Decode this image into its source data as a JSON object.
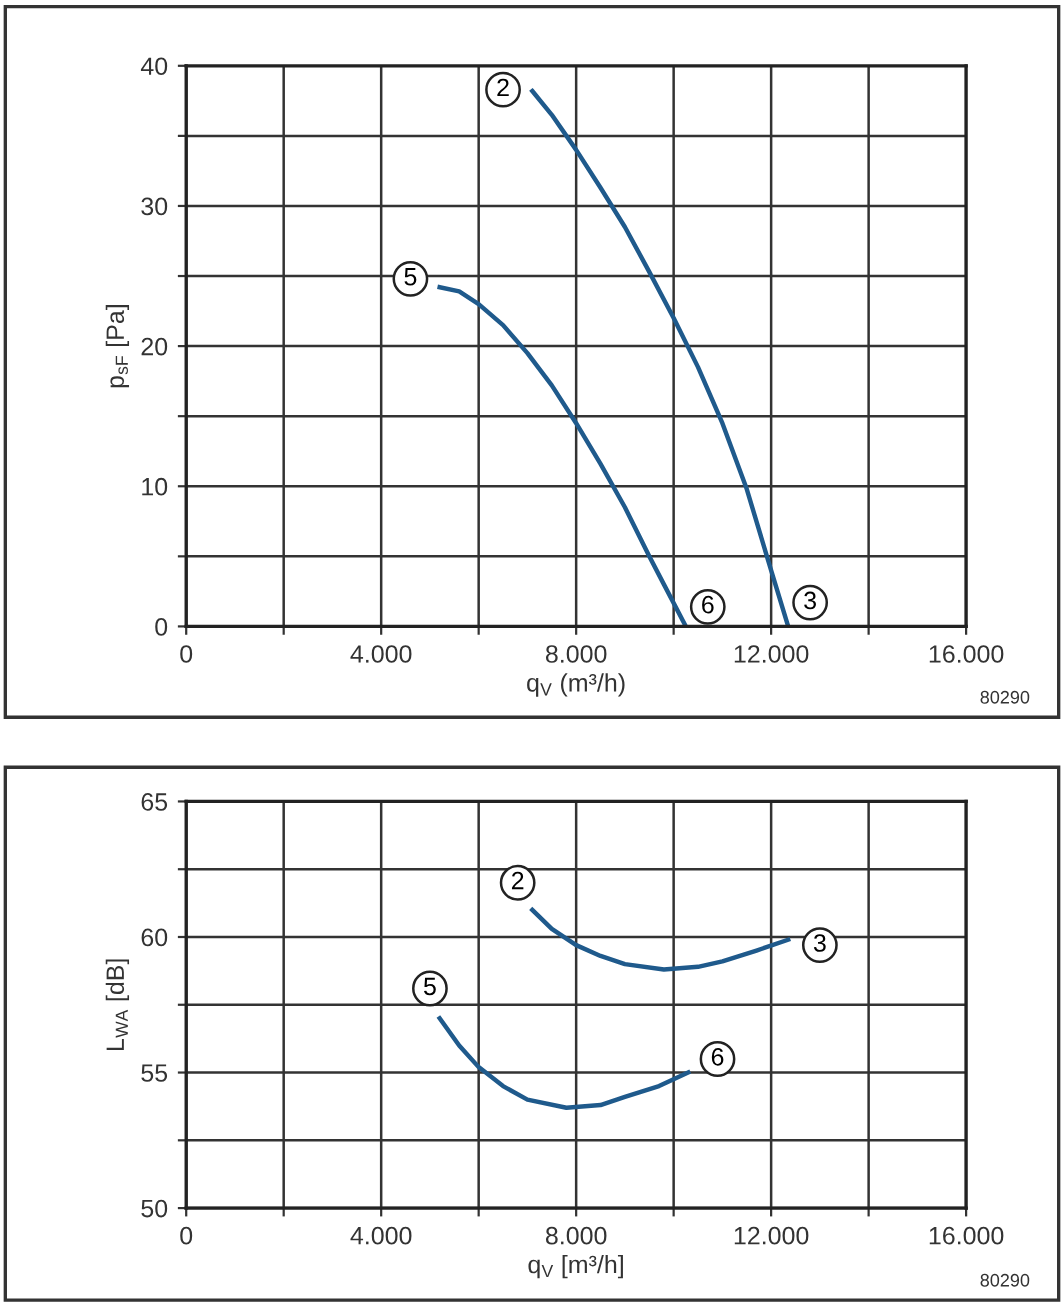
{
  "chart_data": [
    {
      "type": "line",
      "xlabel": "q$_{V}$ (m³/h)",
      "ylabel": "p$_{sF}$ [Pa]",
      "xlim": [
        0,
        16000
      ],
      "xticks": [
        {
          "value": 0,
          "label": "0"
        },
        {
          "value": 2000,
          "label": null
        },
        {
          "value": 4000,
          "label": "4.000"
        },
        {
          "value": 6000,
          "label": null
        },
        {
          "value": 8000,
          "label": "8.000"
        },
        {
          "value": 10000,
          "label": null
        },
        {
          "value": 12000,
          "label": "12.000"
        },
        {
          "value": 14000,
          "label": null
        },
        {
          "value": 16000,
          "label": "16.000"
        }
      ],
      "ylim": [
        0,
        40
      ],
      "yticks": [
        0,
        {
          "value": 5,
          "label": null
        },
        10,
        {
          "value": 15,
          "label": null
        },
        20,
        {
          "value": 25,
          "label": null
        },
        30,
        {
          "value": 35,
          "label": null
        },
        40
      ],
      "grid": true,
      "line_style": "solid",
      "marker": "none",
      "series": [
        {
          "color": "#1f5a8c",
          "x": [
            7100,
            7500,
            8000,
            8500,
            9000,
            9500,
            10000,
            10500,
            11000,
            11500,
            12000,
            12350
          ],
          "values": [
            38.2,
            36.5,
            34,
            31.3,
            28.5,
            25.3,
            22,
            18.5,
            14.5,
            9.8,
            4,
            0
          ]
        },
        {
          "color": "#1f5a8c",
          "x": [
            5200,
            5600,
            6000,
            6500,
            7000,
            7500,
            8000,
            8500,
            9000,
            9500,
            9800,
            10250
          ],
          "values": [
            24.2,
            23.9,
            23,
            21.5,
            19.5,
            17.2,
            14.5,
            11.6,
            8.5,
            5,
            3,
            0
          ]
        }
      ],
      "annotations": [
        {
          "text": "2",
          "x": 6500,
          "y": 38.3
        },
        {
          "text": "3",
          "x": 12800,
          "y": 1.7
        },
        {
          "text": "5",
          "x": 4600,
          "y": 24.8
        },
        {
          "text": "6",
          "x": 10700,
          "y": 1.4
        },
        "80290"
      ]
    },
    {
      "type": "line",
      "xlabel": "q$_{V}$ [m³/h]",
      "ylabel": "L$_{WA}$ [dB]",
      "xlim": [
        0,
        16000
      ],
      "xticks": [
        {
          "value": 0,
          "label": "0"
        },
        {
          "value": 2000,
          "label": null
        },
        {
          "value": 4000,
          "label": "4.000"
        },
        {
          "value": 6000,
          "label": null
        },
        {
          "value": 8000,
          "label": "8.000"
        },
        {
          "value": 10000,
          "label": null
        },
        {
          "value": 12000,
          "label": "12.000"
        },
        {
          "value": 14000,
          "label": null
        },
        {
          "value": 16000,
          "label": "16.000"
        }
      ],
      "ylim": [
        50,
        65
      ],
      "yticks": [
        50,
        {
          "value": 52.5,
          "label": null
        },
        55,
        {
          "value": 57.5,
          "label": null
        },
        60,
        {
          "value": 62.5,
          "label": null
        },
        65
      ],
      "grid": true,
      "line_style": "solid",
      "marker": "none",
      "series": [
        {
          "color": "#1f5a8c",
          "x": [
            7100,
            7500,
            8000,
            8500,
            9000,
            9800,
            10500,
            11000,
            11700,
            12350
          ],
          "values": [
            61,
            60.3,
            59.7,
            59.3,
            59,
            58.8,
            58.9,
            59.1,
            59.5,
            59.9
          ]
        },
        {
          "color": "#1f5a8c",
          "x": [
            5200,
            5600,
            6000,
            6500,
            7000,
            7800,
            8500,
            9000,
            9700,
            10300
          ],
          "values": [
            57,
            56,
            55.2,
            54.5,
            54,
            53.7,
            53.8,
            54.1,
            54.5,
            55
          ]
        }
      ],
      "annotations": [
        {
          "text": "2",
          "x": 6800,
          "y": 62
        },
        {
          "text": "3",
          "x": 13000,
          "y": 59.7
        },
        {
          "text": "5",
          "x": 5000,
          "y": 58.1
        },
        {
          "text": "6",
          "x": 10900,
          "y": 55.5
        },
        "80290"
      ]
    }
  ]
}
